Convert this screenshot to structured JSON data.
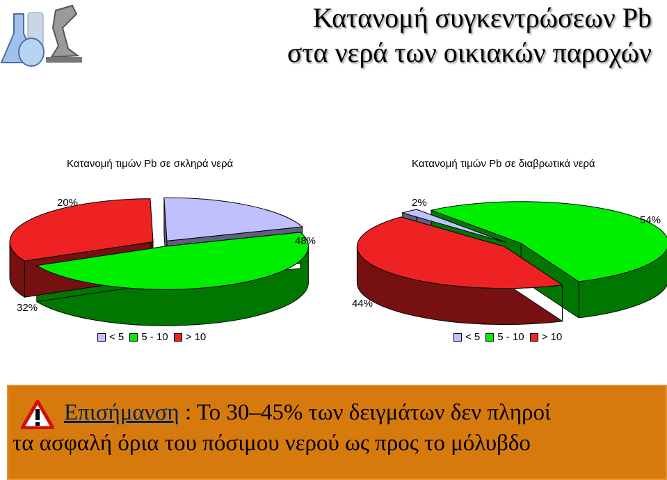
{
  "slide": {
    "title_line1": "Κατανομή συγκεντρώσεων Pb",
    "title_line2": "στα νερά των οικιακών παροχών",
    "logo_icon": "lab-flask-microscope-icon"
  },
  "note": {
    "icon": "warning-triangle-icon",
    "label": "Επισήμανση",
    "line1_rest": " : Το 30–45% των δειγμάτων δεν πληροί",
    "line2": "τα ασφαλή όρια του πόσιμου νερού ως προς το μόλυβδο",
    "bg_color": "#d77a0e"
  },
  "chart_data": [
    {
      "type": "pie",
      "title": "Κατανομή τιμών Pb σε σκληρά νερά",
      "categories": [
        "< 5",
        "5 - 10",
        "> 10"
      ],
      "values": [
        20,
        48,
        32
      ],
      "value_labels": [
        "20%",
        "48%",
        "32%"
      ],
      "colors": [
        "#c0c0ff",
        "#00ee00",
        "#ee2222"
      ],
      "legend": "bottom"
    },
    {
      "type": "pie",
      "title": "Κατανομή τιμών Pb σε διαβρωτικά νερά",
      "categories": [
        "< 5",
        "5 - 10",
        "> 10"
      ],
      "values": [
        2,
        54,
        44
      ],
      "value_labels": [
        "2%",
        "54%",
        "44%"
      ],
      "colors": [
        "#c0c0ff",
        "#00ee00",
        "#ee2222"
      ],
      "legend": "bottom"
    }
  ]
}
